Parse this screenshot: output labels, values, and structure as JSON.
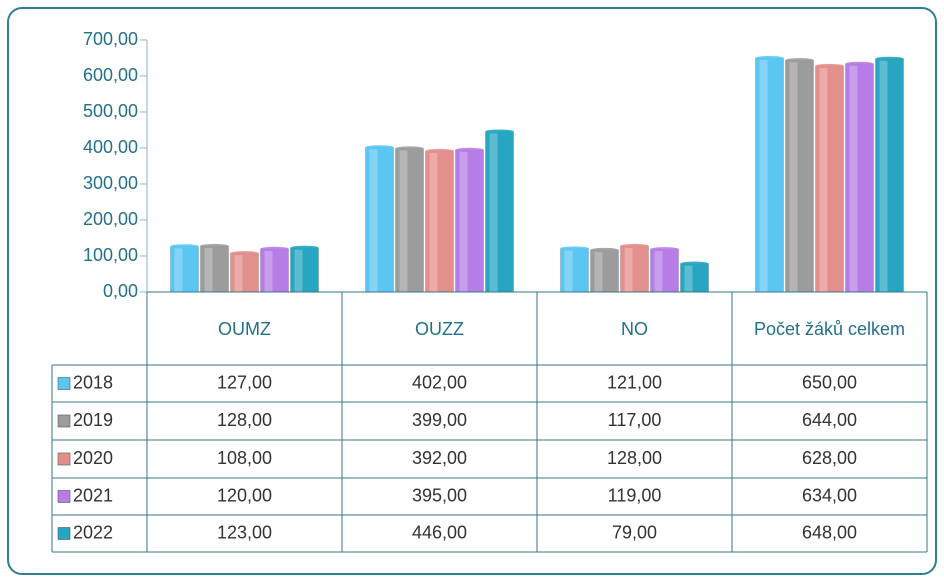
{
  "chart_data": {
    "type": "bar",
    "categories": [
      "OUMZ",
      "OUZZ",
      "NO",
      "Počet žáků celkem"
    ],
    "series": [
      {
        "name": "2018",
        "color": "#5cc6f2",
        "values": [
          127,
          402,
          121,
          650
        ],
        "value_labels": [
          "127,00",
          "402,00",
          "121,00",
          "650,00"
        ]
      },
      {
        "name": "2019",
        "color": "#9c9c9c",
        "values": [
          128,
          399,
          117,
          644
        ],
        "value_labels": [
          "128,00",
          "399,00",
          "117,00",
          "644,00"
        ]
      },
      {
        "name": "2020",
        "color": "#e38f8c",
        "values": [
          108,
          392,
          128,
          628
        ],
        "value_labels": [
          "108,00",
          "392,00",
          "128,00",
          "628,00"
        ]
      },
      {
        "name": "2021",
        "color": "#b67de6",
        "values": [
          120,
          395,
          119,
          634
        ],
        "value_labels": [
          "120,00",
          "395,00",
          "119,00",
          "634,00"
        ]
      },
      {
        "name": "2022",
        "color": "#27a6c2",
        "values": [
          123,
          446,
          79,
          648
        ],
        "value_labels": [
          "123,00",
          "446,00",
          "79,00",
          "648,00"
        ]
      }
    ],
    "ylim": [
      0,
      700
    ],
    "yticks": [
      {
        "value": 0,
        "label": "0,00"
      },
      {
        "value": 100,
        "label": "100,00"
      },
      {
        "value": 200,
        "label": "200,00"
      },
      {
        "value": 300,
        "label": "300,00"
      },
      {
        "value": 400,
        "label": "400,00"
      },
      {
        "value": 500,
        "label": "500,00"
      },
      {
        "value": 600,
        "label": "600,00"
      },
      {
        "value": 700,
        "label": "700,00"
      }
    ]
  }
}
